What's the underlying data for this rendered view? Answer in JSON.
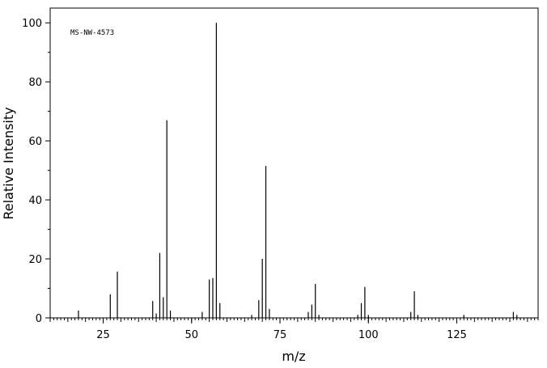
{
  "chart_data": {
    "type": "stem",
    "annotation": "MS-NW-4573",
    "x_label": "m/z",
    "y_label": "Relative Intensity",
    "x": [
      18,
      27,
      29,
      39,
      40,
      41,
      42,
      43,
      44,
      53,
      55,
      56,
      57,
      58,
      67,
      69,
      70,
      71,
      72,
      83,
      84,
      85,
      86,
      97,
      98,
      99,
      100,
      112,
      113,
      114,
      127,
      141,
      142
    ],
    "values": [
      2.5,
      8,
      15.7,
      5.7,
      1.5,
      22,
      7,
      67,
      2.5,
      2,
      13,
      13.5,
      100,
      5,
      1,
      6,
      20,
      51.5,
      3,
      2,
      4.5,
      11.5,
      1,
      1,
      5,
      10.5,
      1,
      2,
      9,
      1,
      1,
      2,
      1
    ],
    "color": "#000000",
    "xlim": [
      10,
      148
    ],
    "ylim": [
      0,
      105
    ],
    "xticks": [
      25,
      50,
      75,
      100,
      125
    ],
    "yticks": [
      0,
      20,
      40,
      60,
      80,
      100
    ]
  }
}
